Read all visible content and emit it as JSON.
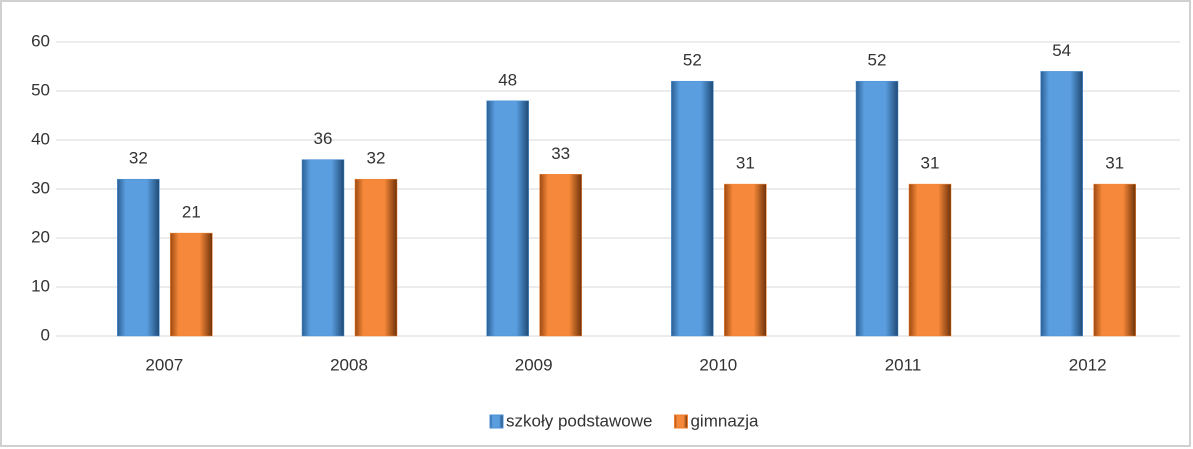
{
  "chart_data": {
    "type": "bar",
    "categories": [
      "2007",
      "2008",
      "2009",
      "2010",
      "2011",
      "2012"
    ],
    "series": [
      {
        "name": "szkoły podstawowe",
        "color": "#4a8fd4",
        "values": [
          32,
          36,
          48,
          52,
          52,
          54
        ]
      },
      {
        "name": "gimnazja",
        "color": "#f07d2a",
        "values": [
          21,
          32,
          33,
          31,
          31,
          31
        ]
      }
    ],
    "ylim": [
      0,
      60
    ],
    "yticks": [
      0,
      10,
      20,
      30,
      40,
      50,
      60
    ],
    "grid": true,
    "legend": "bottom"
  }
}
